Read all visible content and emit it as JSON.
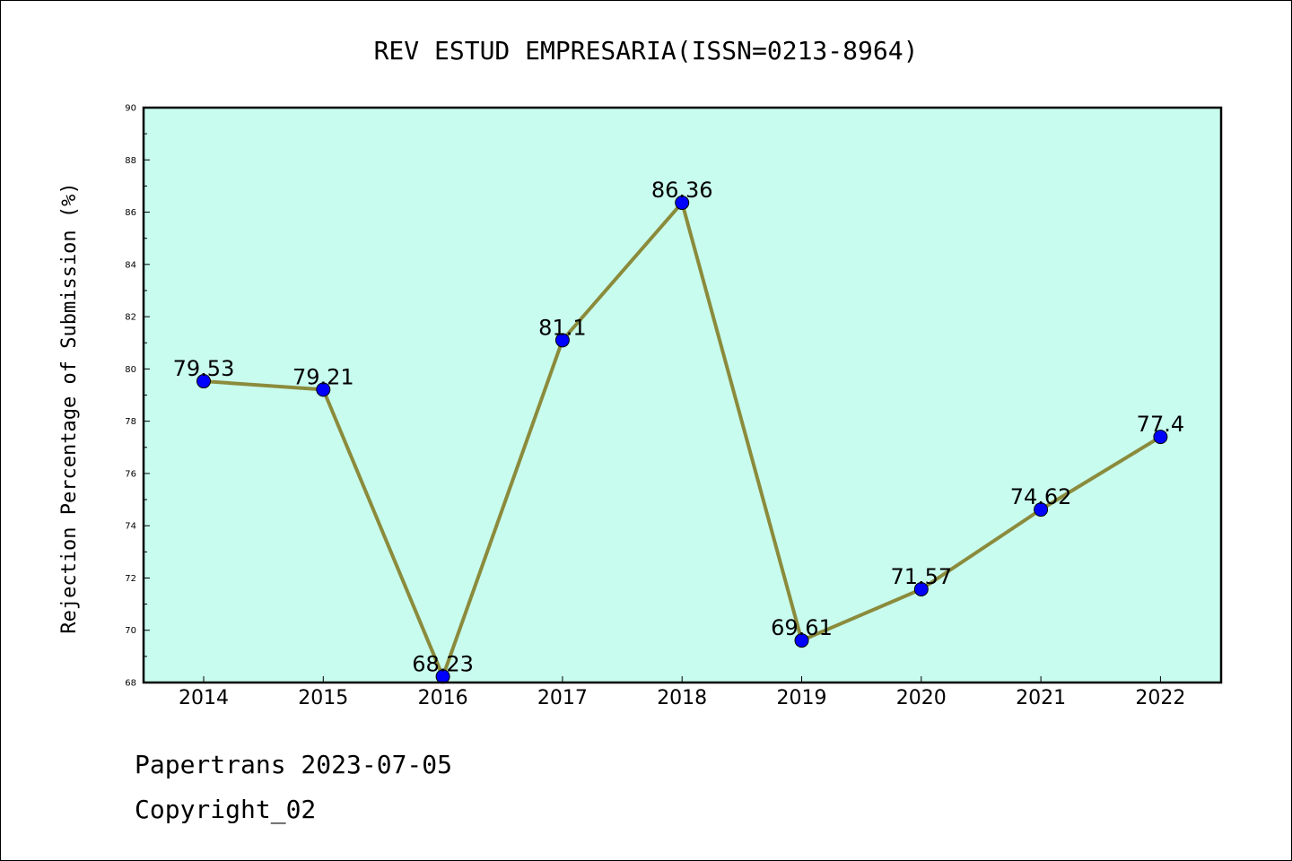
{
  "chart_data": {
    "type": "line",
    "title": "REV ESTUD EMPRESARIA(ISSN=0213-8964)",
    "xlabel": "",
    "ylabel": "Rejection Percentage of Submission (%)",
    "categories": [
      "2014",
      "2015",
      "2016",
      "2017",
      "2018",
      "2019",
      "2020",
      "2021",
      "2022"
    ],
    "values": [
      79.53,
      79.21,
      68.23,
      81.1,
      86.36,
      69.61,
      71.57,
      74.62,
      77.4
    ],
    "data_labels": [
      "79.53",
      "79.21",
      "68.23",
      "81.1",
      "86.36",
      "69.61",
      "71.57",
      "74.62",
      "77.4"
    ],
    "ylim": [
      68,
      90
    ],
    "yticks": [
      68,
      70,
      72,
      74,
      76,
      78,
      80,
      82,
      84,
      86,
      88,
      90
    ],
    "grid": false,
    "colors": {
      "plot_background": "#c8fcee",
      "line": "#8b8b3c",
      "marker": "#0000ff"
    }
  },
  "footer": {
    "date_text": "Papertrans 2023-07-05",
    "copyright_text": "Copyright_02"
  }
}
